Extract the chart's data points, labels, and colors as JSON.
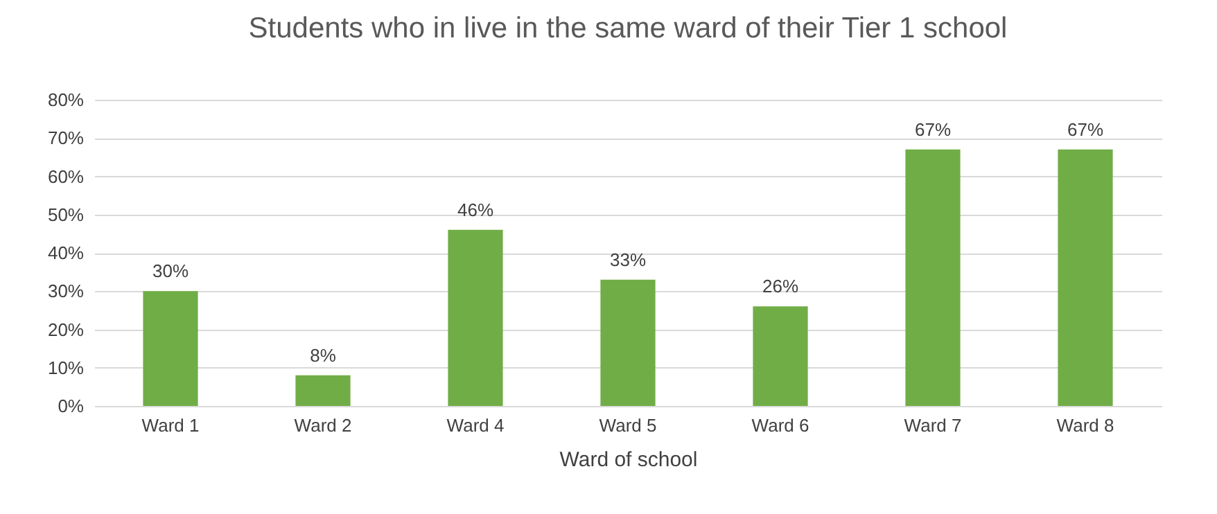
{
  "chart_data": {
    "type": "bar",
    "title": "Students who in live in the same ward of their Tier 1 school",
    "xlabel": "Ward of school",
    "categories": [
      "Ward 1",
      "Ward 2",
      "Ward 4",
      "Ward 5",
      "Ward 6",
      "Ward 7",
      "Ward 8"
    ],
    "values": [
      30,
      8,
      46,
      33,
      26,
      67,
      67
    ],
    "value_labels": [
      "30%",
      "8%",
      "46%",
      "33%",
      "26%",
      "67%",
      "67%"
    ],
    "color": "#70ad47",
    "ylim": [
      0,
      80
    ],
    "yticks": [
      {
        "value": 0,
        "label": "0%"
      },
      {
        "value": 10,
        "label": "10%"
      },
      {
        "value": 20,
        "label": "20%"
      },
      {
        "value": 30,
        "label": "30%"
      },
      {
        "value": 40,
        "label": "40%"
      },
      {
        "value": 50,
        "label": "50%"
      },
      {
        "value": 60,
        "label": "60%"
      },
      {
        "value": 70,
        "label": "70%"
      },
      {
        "value": 80,
        "label": "80%"
      }
    ],
    "grid": "y"
  }
}
